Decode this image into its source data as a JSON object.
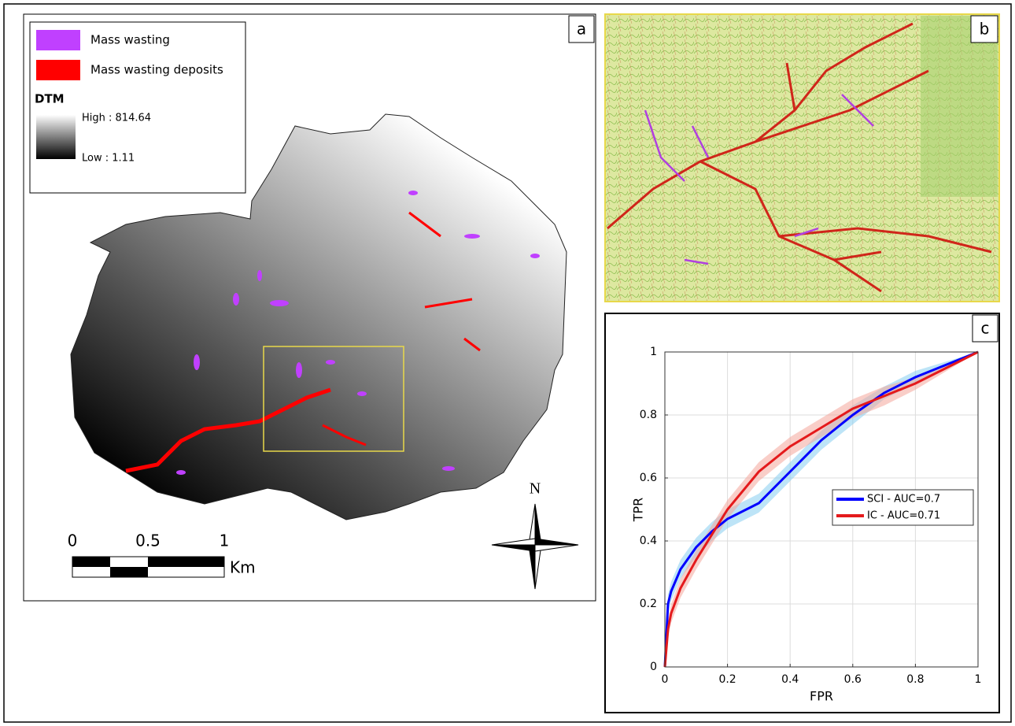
{
  "panel_labels": [
    "a",
    "b",
    "c"
  ],
  "legend": {
    "items": [
      {
        "label": "Mass wasting",
        "color": "#c040ff"
      },
      {
        "label": "Mass wasting deposits",
        "color": "#ff0000"
      }
    ],
    "dtm_title": "DTM",
    "high": "High : 814.64",
    "low": "Low : 1.11"
  },
  "scale_bar": {
    "ticks": [
      0,
      0.5,
      1
    ],
    "unit": "Km"
  },
  "north": "N",
  "chart_data": {
    "type": "line",
    "xlabel": "FPR",
    "ylabel": "TPR",
    "xlim": [
      0,
      1
    ],
    "ylim": [
      0,
      1
    ],
    "xticks": [
      0,
      0.2,
      0.4,
      0.6,
      0.8,
      1
    ],
    "yticks": [
      0,
      0.2,
      0.4,
      0.6,
      0.8,
      1
    ],
    "grid": true,
    "legend": "right",
    "x": [
      0,
      0.01,
      0.02,
      0.05,
      0.1,
      0.15,
      0.2,
      0.3,
      0.4,
      0.5,
      0.6,
      0.7,
      0.8,
      0.9,
      1
    ],
    "series": [
      {
        "name": "SCI - AUC=0.7",
        "color": "#0000ff",
        "band_color": "#87cef0",
        "values": [
          0,
          0.2,
          0.24,
          0.31,
          0.38,
          0.43,
          0.47,
          0.52,
          0.62,
          0.72,
          0.8,
          0.87,
          0.92,
          0.96,
          1
        ],
        "lower": [
          0,
          0.17,
          0.21,
          0.28,
          0.35,
          0.4,
          0.44,
          0.49,
          0.59,
          0.69,
          0.77,
          0.85,
          0.9,
          0.95,
          1
        ],
        "upper": [
          0,
          0.23,
          0.27,
          0.34,
          0.41,
          0.46,
          0.5,
          0.55,
          0.65,
          0.75,
          0.83,
          0.89,
          0.94,
          0.97,
          1
        ]
      },
      {
        "name": "IC - AUC=0.71",
        "color": "#e41a1c",
        "band_color": "#f4a69a",
        "values": [
          0,
          0.12,
          0.17,
          0.25,
          0.34,
          0.42,
          0.5,
          0.62,
          0.7,
          0.76,
          0.82,
          0.86,
          0.9,
          0.95,
          1
        ],
        "lower": [
          0,
          0.09,
          0.14,
          0.22,
          0.31,
          0.39,
          0.47,
          0.59,
          0.67,
          0.73,
          0.79,
          0.83,
          0.88,
          0.94,
          1
        ],
        "upper": [
          0,
          0.15,
          0.2,
          0.28,
          0.37,
          0.45,
          0.53,
          0.65,
          0.73,
          0.79,
          0.85,
          0.89,
          0.92,
          0.96,
          1
        ]
      }
    ]
  }
}
